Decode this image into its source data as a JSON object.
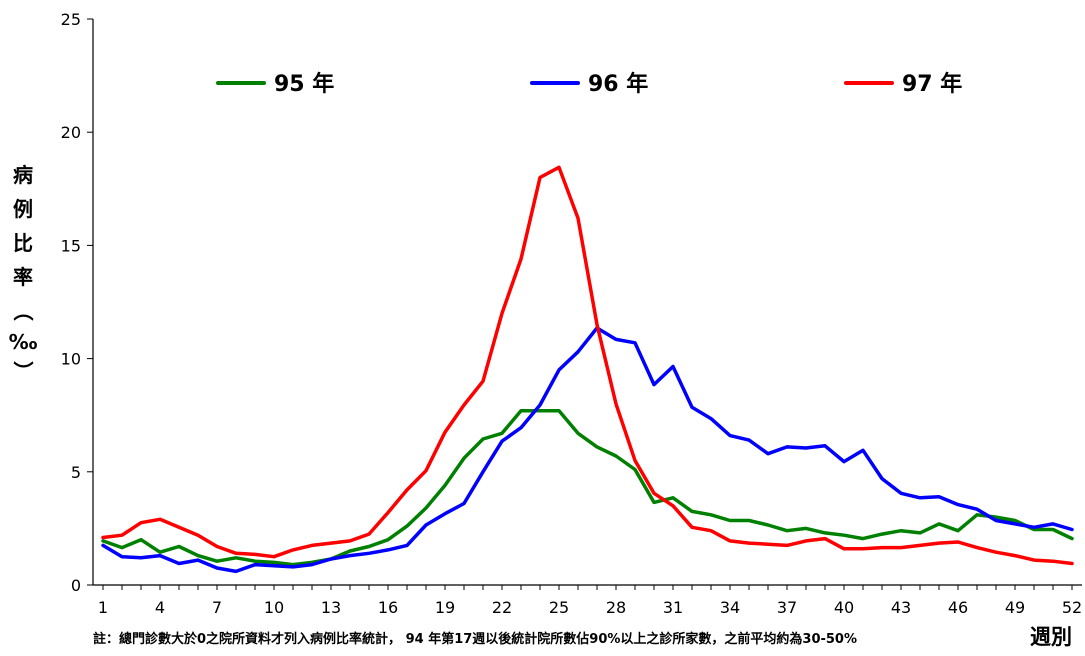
{
  "chart_data": {
    "type": "line",
    "xlabel": "週別",
    "ylabel": "病例比率（‰）",
    "ylabel_chars": [
      "病",
      "例",
      "比",
      "率",
      "（",
      "‰",
      "）"
    ],
    "note": "註：總門診數大於0之院所資料才列入病例比率統計， 94 年第17週以後統計院所數佔90%以上之診所家數，之前平均約為30-50%",
    "xlim": [
      1,
      52
    ],
    "ylim": [
      0,
      25
    ],
    "xticks": [
      1,
      4,
      7,
      10,
      13,
      16,
      19,
      22,
      25,
      28,
      31,
      34,
      37,
      40,
      43,
      46,
      49,
      52
    ],
    "yticks": [
      0,
      5,
      10,
      15,
      20,
      25
    ],
    "grid": false,
    "legend_position": "top",
    "x": [
      1,
      2,
      3,
      4,
      5,
      6,
      7,
      8,
      9,
      10,
      11,
      12,
      13,
      14,
      15,
      16,
      17,
      18,
      19,
      20,
      21,
      22,
      23,
      24,
      25,
      26,
      27,
      28,
      29,
      30,
      31,
      32,
      33,
      34,
      35,
      36,
      37,
      38,
      39,
      40,
      41,
      42,
      43,
      44,
      45,
      46,
      47,
      48,
      49,
      50,
      51,
      52
    ],
    "series": [
      {
        "name": "95 年",
        "color": "#008000",
        "values": [
          1.95,
          1.65,
          2.0,
          1.45,
          1.7,
          1.3,
          1.05,
          1.2,
          1.05,
          1.0,
          0.9,
          1.0,
          1.15,
          1.5,
          1.7,
          2.0,
          2.6,
          3.4,
          4.4,
          5.6,
          6.45,
          6.7,
          7.7,
          7.7,
          7.7,
          6.7,
          6.1,
          5.7,
          5.1,
          3.65,
          3.85,
          3.25,
          3.1,
          2.85,
          2.85,
          2.65,
          2.4,
          2.5,
          2.3,
          2.2,
          2.05,
          2.25,
          2.4,
          2.3,
          2.7,
          2.4,
          3.1,
          3.0,
          2.85,
          2.45,
          2.45,
          2.05
        ]
      },
      {
        "name": "96 年",
        "color": "#0000ff",
        "values": [
          1.75,
          1.25,
          1.2,
          1.3,
          0.95,
          1.1,
          0.75,
          0.6,
          0.9,
          0.85,
          0.8,
          0.9,
          1.15,
          1.3,
          1.4,
          1.55,
          1.75,
          2.65,
          3.15,
          3.6,
          5.0,
          6.35,
          6.95,
          7.95,
          9.5,
          10.3,
          11.35,
          10.85,
          10.7,
          8.85,
          9.65,
          7.85,
          7.35,
          6.6,
          6.4,
          5.8,
          6.1,
          6.05,
          6.15,
          5.45,
          5.95,
          4.7,
          4.05,
          3.85,
          3.9,
          3.55,
          3.35,
          2.85,
          2.7,
          2.55,
          2.7,
          2.45
        ]
      },
      {
        "name": "97 年",
        "color": "#ff0000",
        "values": [
          2.1,
          2.2,
          2.75,
          2.9,
          2.55,
          2.2,
          1.7,
          1.4,
          1.35,
          1.25,
          1.55,
          1.75,
          1.85,
          1.95,
          2.25,
          3.2,
          4.2,
          5.05,
          6.75,
          7.95,
          9.0,
          12.0,
          14.4,
          18.0,
          18.45,
          16.2,
          11.5,
          8.0,
          5.5,
          4.05,
          3.5,
          2.55,
          2.4,
          1.95,
          1.85,
          1.8,
          1.75,
          1.95,
          2.05,
          1.6,
          1.6,
          1.65,
          1.65,
          1.75,
          1.85,
          1.9,
          1.65,
          1.45,
          1.3,
          1.1,
          1.05,
          0.95
        ]
      }
    ]
  }
}
